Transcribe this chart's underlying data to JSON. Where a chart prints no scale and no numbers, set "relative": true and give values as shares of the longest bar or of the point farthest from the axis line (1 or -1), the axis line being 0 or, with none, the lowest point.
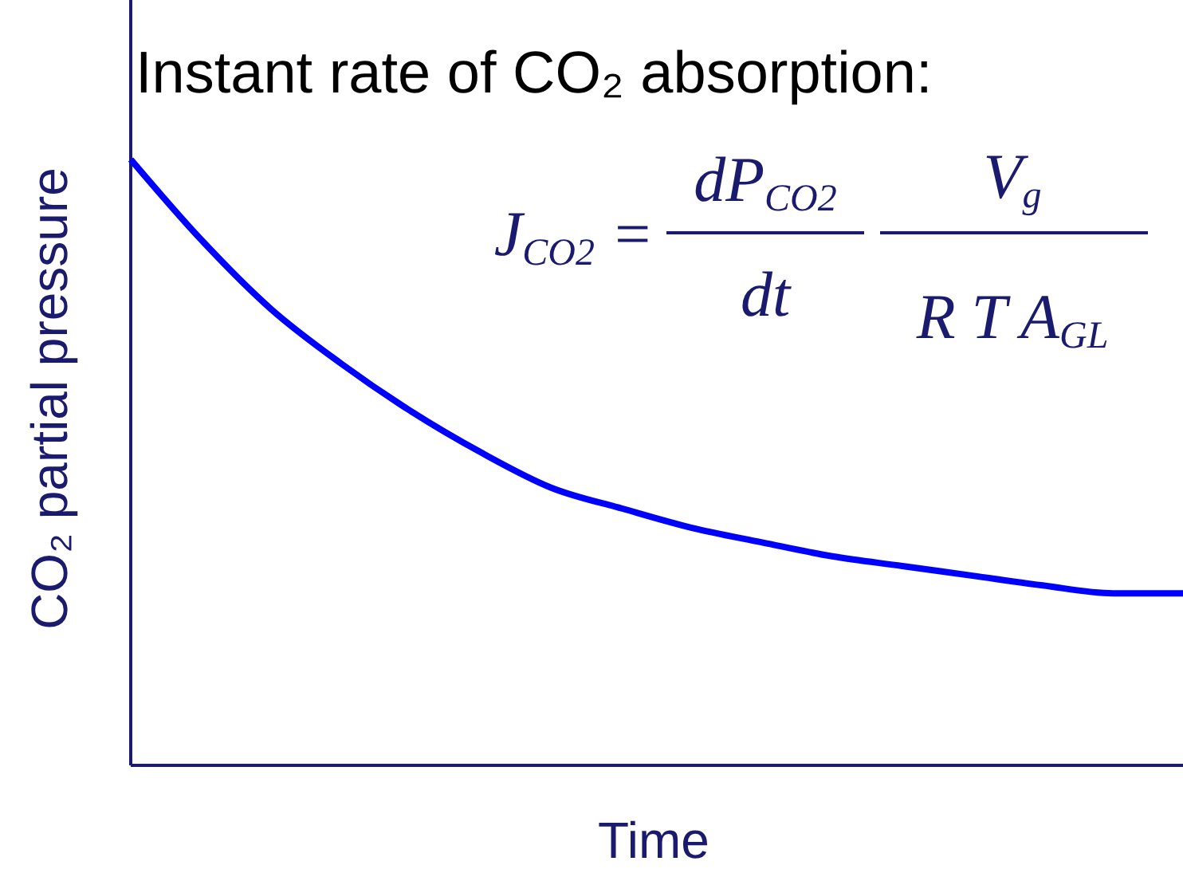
{
  "chart_data": {
    "type": "line",
    "relative": true,
    "title": "Instant rate of CO₂ absorption:",
    "xlabel": "Time",
    "ylabel": "CO₂ partial pressure",
    "annotations": [
      "J$_{CO2}$ =",
      "dP$_{CO2}$",
      "dt",
      "V$_{g}$",
      "R T A$_{GL}$"
    ],
    "categories": [
      null,
      null,
      null,
      null,
      null,
      null,
      null,
      null,
      null,
      null,
      null,
      null,
      null,
      null,
      null,
      null
    ],
    "series": [
      {
        "color": "#0000ff",
        "values": [
          1,
          0.868,
          0.753,
          0.663,
          0.584,
          0.516,
          0.458,
          0.424,
          0.392,
          0.368,
          0.345,
          0.329,
          0.313,
          0.297,
          0.284,
          0.284
        ]
      }
    ],
    "line_style": "solid"
  }
}
